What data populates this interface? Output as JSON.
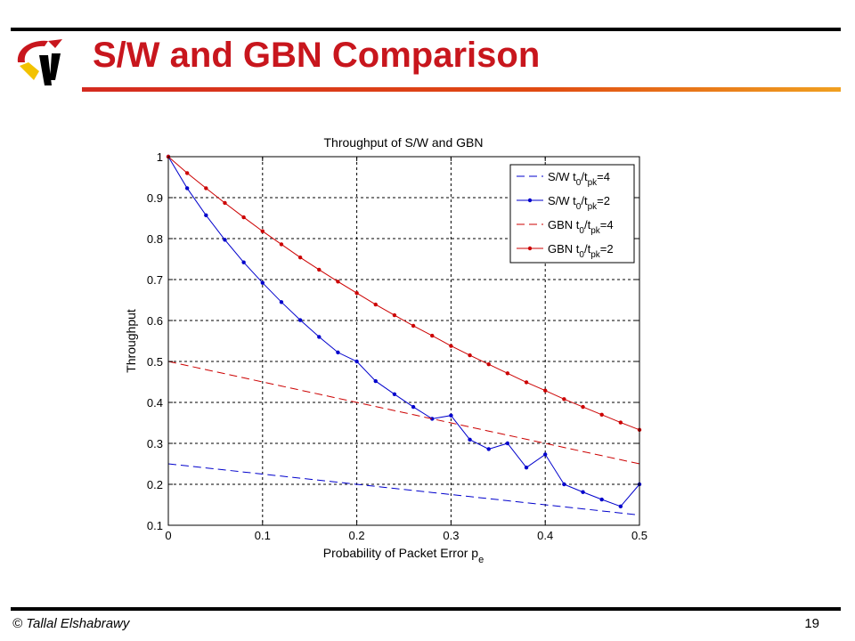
{
  "slide": {
    "title": "S/W and GBN Comparison",
    "footer_left": "© Tallal Elshabrawy",
    "page_number": "19",
    "logo_icon": "university-logo-icon",
    "colors": {
      "title": "#c8161d",
      "accent_bar": "#d42a1f",
      "series_blue": "#0000cc",
      "series_red": "#cc0000"
    }
  },
  "chart_data": {
    "type": "line",
    "title": "Throughput of S/W and GBN",
    "xlabel": "Probability of Packet Error p",
    "xlabel_sub": "e",
    "ylabel": "Throughput",
    "xlim": [
      0,
      0.5
    ],
    "ylim": [
      0.1,
      1
    ],
    "xticks": [
      0,
      0.1,
      0.2,
      0.3,
      0.4,
      0.5
    ],
    "xtick_labels": [
      "0",
      "0.1",
      "0.2",
      "0.3",
      "0.4",
      "0.5"
    ],
    "yticks": [
      0.1,
      0.2,
      0.3,
      0.4,
      0.5,
      0.6,
      0.7,
      0.8,
      0.9,
      1
    ],
    "ytick_labels": [
      "0.1",
      "0.2",
      "0.3",
      "0.4",
      "0.5",
      "0.6",
      "0.7",
      "0.8",
      "0.9",
      "1"
    ],
    "grid": true,
    "legend_position": "top-right",
    "x": [
      0,
      0.02,
      0.04,
      0.06,
      0.08,
      0.1,
      0.12,
      0.14,
      0.16,
      0.18,
      0.2,
      0.22,
      0.24,
      0.26,
      0.28,
      0.3,
      0.32,
      0.34,
      0.36,
      0.38,
      0.4,
      0.42,
      0.44,
      0.46,
      0.48,
      0.5
    ],
    "series": [
      {
        "name": "S/W t0/tpk=4",
        "label_parts": [
          "S/W t",
          "0",
          "/t",
          "pk",
          "=4"
        ],
        "color": "#0000cc",
        "style": "dashed",
        "marker": false,
        "values": [
          0.25,
          0.245,
          0.24,
          0.235,
          0.23,
          0.225,
          0.22,
          0.215,
          0.21,
          0.205,
          0.2,
          0.195,
          0.19,
          0.185,
          0.18,
          0.175,
          0.17,
          0.165,
          0.16,
          0.155,
          0.15,
          0.145,
          0.14,
          0.135,
          0.13,
          0.125
        ]
      },
      {
        "name": "S/W t0/tpk=2",
        "label_parts": [
          "S/W t",
          "0",
          "/t",
          "pk",
          "=2"
        ],
        "color": "#0000cc",
        "style": "solid",
        "marker": true,
        "values": [
          1.0,
          0.923,
          0.857,
          0.797,
          0.742,
          0.692,
          0.645,
          0.601,
          0.56,
          0.522,
          0.5,
          0.452,
          0.42,
          0.389,
          0.36,
          0.368,
          0.309,
          0.286,
          0.3,
          0.241,
          0.273,
          0.2,
          0.181,
          0.163,
          0.146,
          0.2
        ]
      },
      {
        "name": "GBN t0/tpk=4",
        "label_parts": [
          "GBN t",
          "0",
          "/t",
          "pk",
          "=4"
        ],
        "color": "#cc0000",
        "style": "dashed",
        "marker": false,
        "values": [
          0.5,
          0.49,
          0.48,
          0.47,
          0.46,
          0.45,
          0.44,
          0.43,
          0.42,
          0.41,
          0.4,
          0.39,
          0.38,
          0.37,
          0.36,
          0.35,
          0.34,
          0.33,
          0.32,
          0.31,
          0.3,
          0.29,
          0.28,
          0.27,
          0.26,
          0.25
        ]
      },
      {
        "name": "GBN t0/tpk=2",
        "label_parts": [
          "GBN t",
          "0",
          "/t",
          "pk",
          "=2"
        ],
        "color": "#cc0000",
        "style": "solid",
        "marker": true,
        "values": [
          1.0,
          0.96,
          0.923,
          0.887,
          0.852,
          0.818,
          0.786,
          0.754,
          0.724,
          0.695,
          0.667,
          0.639,
          0.613,
          0.587,
          0.563,
          0.538,
          0.515,
          0.493,
          0.471,
          0.449,
          0.429,
          0.408,
          0.389,
          0.37,
          0.351,
          0.333
        ]
      }
    ]
  }
}
